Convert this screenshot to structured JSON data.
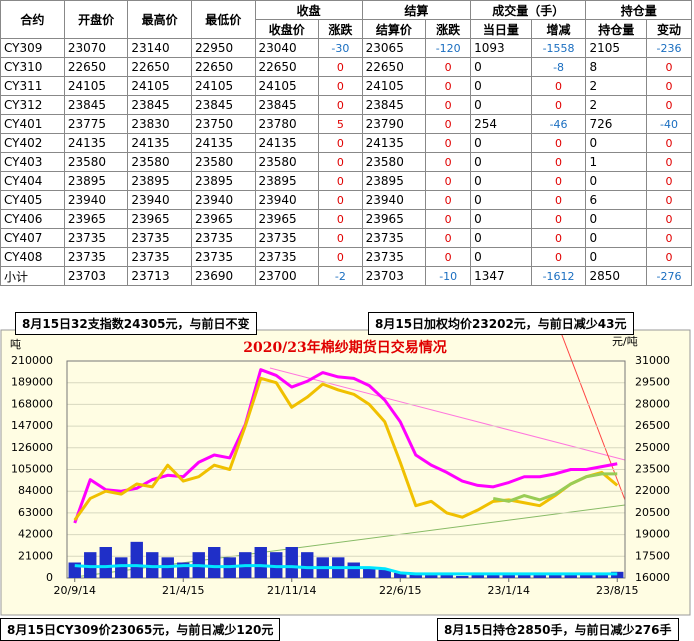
{
  "table": {
    "header_top": [
      "合约",
      "开盘价",
      "最高价",
      "最低价",
      "收盘",
      "结算",
      "成交量（手）",
      "持仓量"
    ],
    "header_sub": [
      "收盘价",
      "涨跌",
      "结算价",
      "涨跌",
      "当日量",
      "增减",
      "持仓量",
      "变动"
    ],
    "rows": [
      [
        "CY309",
        23070,
        23140,
        22950,
        23040,
        -30,
        23065,
        -120,
        1093,
        -1558,
        2105,
        -236
      ],
      [
        "CY310",
        22650,
        22650,
        22650,
        22650,
        0,
        22650,
        0,
        0,
        -8,
        8,
        0
      ],
      [
        "CY311",
        24105,
        24105,
        24105,
        24105,
        0,
        24105,
        0,
        0,
        0,
        2,
        0
      ],
      [
        "CY312",
        23845,
        23845,
        23845,
        23845,
        0,
        23845,
        0,
        0,
        0,
        2,
        0
      ],
      [
        "CY401",
        23775,
        23830,
        23750,
        23780,
        5,
        23790,
        0,
        254,
        -46,
        726,
        -40
      ],
      [
        "CY402",
        24135,
        24135,
        24135,
        24135,
        0,
        24135,
        0,
        0,
        0,
        0,
        0
      ],
      [
        "CY403",
        23580,
        23580,
        23580,
        23580,
        0,
        23580,
        0,
        0,
        0,
        1,
        0
      ],
      [
        "CY404",
        23895,
        23895,
        23895,
        23895,
        0,
        23895,
        0,
        0,
        0,
        0,
        0
      ],
      [
        "CY405",
        23940,
        23940,
        23940,
        23940,
        0,
        23940,
        0,
        0,
        0,
        6,
        0
      ],
      [
        "CY406",
        23965,
        23965,
        23965,
        23965,
        0,
        23965,
        0,
        0,
        0,
        0,
        0
      ],
      [
        "CY407",
        23735,
        23735,
        23735,
        23735,
        0,
        23735,
        0,
        0,
        0,
        0,
        0
      ],
      [
        "CY408",
        23735,
        23735,
        23735,
        23735,
        0,
        23735,
        0,
        0,
        0,
        0,
        0
      ],
      [
        "小计",
        23703,
        23713,
        23690,
        23700,
        -2,
        23703,
        -10,
        1347,
        -1612,
        2850,
        -276
      ]
    ]
  },
  "notes": [
    "8月15日32支指数24305元，与前日不变",
    "8月15日加权均价23202元，与前日减少43元",
    "8月15日CY309价23065元，与前日减少120元",
    "8月15日持仓2850手，与前日减少276手"
  ],
  "chart_data": {
    "type": "bar-line",
    "title": "2020/23年棉纱期货日交易情况",
    "y_unit": "吨",
    "y2_unit": "元/吨",
    "categories": [
      "20/9/14",
      null,
      null,
      null,
      null,
      null,
      null,
      "21/4/15",
      null,
      null,
      null,
      null,
      null,
      null,
      "21/11/14",
      null,
      null,
      null,
      null,
      null,
      null,
      "22/6/15",
      null,
      null,
      null,
      null,
      null,
      null,
      "23/1/14",
      null,
      null,
      null,
      null,
      null,
      null,
      "23/8/15"
    ],
    "ylim": [
      0,
      210000
    ],
    "yticks": [
      0,
      21000,
      42000,
      63000,
      84000,
      105000,
      126000,
      147000,
      168000,
      189000,
      210000
    ],
    "y2lim": [
      16000,
      31000
    ],
    "y2ticks": [
      16000,
      17500,
      19000,
      20500,
      22000,
      23500,
      25000,
      26500,
      28000,
      29500,
      31000
    ],
    "grid": true,
    "series": [
      {
        "type": "bar",
        "color": "#1f2fc8",
        "values": [
          15000,
          25000,
          30000,
          20000,
          35000,
          25000,
          20000,
          15000,
          25000,
          30000,
          20000,
          25000,
          30000,
          25000,
          30000,
          25000,
          20000,
          20000,
          15000,
          10000,
          8000,
          5000,
          3000,
          3000,
          3000,
          2000,
          3000,
          3000,
          3000,
          4000,
          3000,
          3000,
          4000,
          4000,
          5000,
          6000
        ]
      },
      {
        "type": "line",
        "color": "#00e5ff",
        "values": [
          12000,
          11000,
          11000,
          12000,
          12000,
          11000,
          11000,
          12000,
          12000,
          11000,
          11000,
          12000,
          12000,
          11000,
          11000,
          10000,
          10000,
          10000,
          10000,
          10000,
          9000,
          5000,
          4000,
          4000,
          4000,
          4000,
          4000,
          4000,
          4000,
          4000,
          4000,
          4000,
          4000,
          4000,
          4000,
          4000
        ]
      },
      {
        "type": "line",
        "axis": "y2",
        "color": "#ff00ff",
        "values": [
          19800,
          22800,
          22100,
          22000,
          22200,
          22800,
          23100,
          23000,
          24000,
          24500,
          24300,
          26600,
          30400,
          30000,
          29200,
          29600,
          30200,
          29900,
          29800,
          29300,
          28300,
          26800,
          24500,
          23800,
          23300,
          22700,
          22400,
          22300,
          22600,
          23000,
          23000,
          23200,
          23500,
          23500,
          23700,
          23900
        ]
      },
      {
        "type": "line",
        "axis": "y2",
        "color": "#f0c000",
        "values": [
          20000,
          21500,
          22000,
          21800,
          22500,
          22300,
          23800,
          22700,
          23000,
          23800,
          23500,
          26500,
          29800,
          29500,
          27800,
          28500,
          29400,
          29000,
          28700,
          28000,
          26800,
          24000,
          21000,
          21300,
          20500,
          20200,
          20700,
          21300,
          21400,
          21200,
          21000,
          21700,
          22500,
          23000,
          23300,
          22400
        ]
      },
      {
        "type": "line",
        "axis": "y2",
        "color": "#99cc55",
        "values": [
          null,
          null,
          null,
          null,
          null,
          null,
          null,
          null,
          null,
          null,
          null,
          null,
          null,
          null,
          null,
          null,
          null,
          null,
          null,
          null,
          null,
          null,
          null,
          null,
          null,
          null,
          null,
          21500,
          21300,
          21700,
          21400,
          21800,
          22500,
          23000,
          23200,
          23200
        ]
      }
    ]
  }
}
